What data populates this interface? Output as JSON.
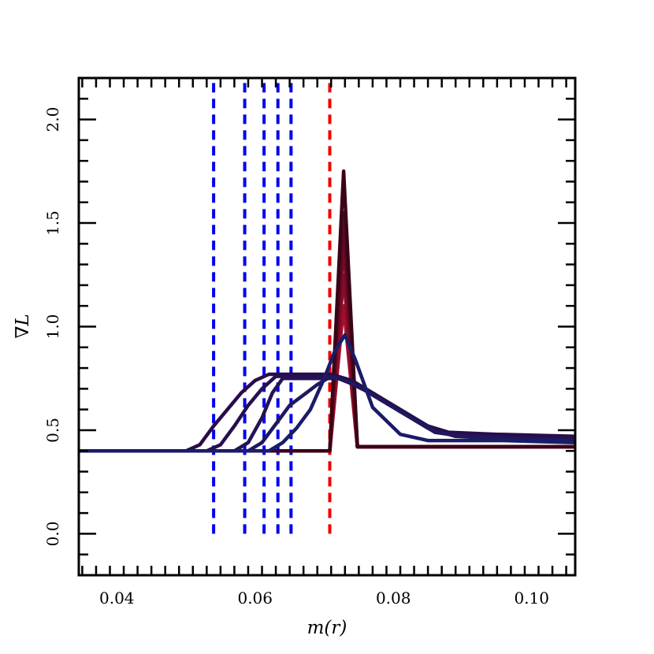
{
  "chart_data": {
    "type": "line",
    "title": "",
    "xlabel": "m(r)",
    "ylabel": "∇L",
    "xlim": [
      0.0345,
      0.1063
    ],
    "ylim": [
      -0.2,
      2.2
    ],
    "x_ticks": [
      0.04,
      0.06,
      0.08,
      0.1
    ],
    "x_tick_labels": [
      "0.04",
      "0.06",
      "0.08",
      "0.10"
    ],
    "y_ticks": [
      0.0,
      0.5,
      1.0,
      1.5,
      2.0
    ],
    "y_tick_labels": [
      "0.0",
      "0.5",
      "1.0",
      "1.5",
      "2.0"
    ],
    "grid": false,
    "legend": "none",
    "vertical_lines": [
      {
        "x": 0.054,
        "color": "#0000ee",
        "style": "dashed",
        "y_range": [
          0.0,
          2.2
        ]
      },
      {
        "x": 0.0585,
        "color": "#0000ee",
        "style": "dashed",
        "y_range": [
          0.0,
          2.2
        ]
      },
      {
        "x": 0.0613,
        "color": "#0000ee",
        "style": "dashed",
        "y_range": [
          0.0,
          2.2
        ]
      },
      {
        "x": 0.0633,
        "color": "#0000ee",
        "style": "dashed",
        "y_range": [
          0.0,
          2.2
        ]
      },
      {
        "x": 0.0652,
        "color": "#0000ee",
        "style": "dashed",
        "y_range": [
          0.0,
          2.2
        ]
      },
      {
        "x": 0.0708,
        "color": "#ee0000",
        "style": "dashed",
        "y_range": [
          0.0,
          2.2
        ]
      }
    ],
    "series": [
      {
        "color": "#a0102a",
        "x": [
          0.0345,
          0.0708,
          0.0728,
          0.0748,
          0.1063
        ],
        "y": [
          0.4,
          0.4,
          1.1,
          0.42,
          0.42
        ]
      },
      {
        "color": "#8a0c28",
        "x": [
          0.0345,
          0.0708,
          0.0728,
          0.0748,
          0.1063
        ],
        "y": [
          0.4,
          0.4,
          1.25,
          0.42,
          0.42
        ]
      },
      {
        "color": "#760a24",
        "x": [
          0.0345,
          0.0708,
          0.0728,
          0.0748,
          0.1063
        ],
        "y": [
          0.4,
          0.4,
          1.4,
          0.42,
          0.42
        ]
      },
      {
        "color": "#5a0820",
        "x": [
          0.0345,
          0.0708,
          0.0728,
          0.0748,
          0.1063
        ],
        "y": [
          0.4,
          0.4,
          1.55,
          0.42,
          0.42
        ]
      },
      {
        "color": "#3a0418",
        "x": [
          0.0345,
          0.0708,
          0.0728,
          0.0748,
          0.1063
        ],
        "y": [
          0.4,
          0.4,
          1.75,
          0.42,
          0.42
        ]
      },
      {
        "color": "#2a0c4a",
        "x": [
          0.0345,
          0.05,
          0.052,
          0.054,
          0.056,
          0.058,
          0.06,
          0.062,
          0.065,
          0.068,
          0.071,
          0.074,
          0.077,
          0.081,
          0.085,
          0.088,
          0.095,
          0.1063
        ],
        "y": [
          0.4,
          0.4,
          0.43,
          0.52,
          0.6,
          0.68,
          0.74,
          0.77,
          0.77,
          0.77,
          0.77,
          0.74,
          0.68,
          0.6,
          0.52,
          0.49,
          0.48,
          0.47
        ]
      },
      {
        "color": "#26104f",
        "x": [
          0.0345,
          0.053,
          0.055,
          0.057,
          0.059,
          0.061,
          0.063,
          0.065,
          0.068,
          0.071,
          0.074,
          0.077,
          0.081,
          0.085,
          0.088,
          0.095,
          0.1063
        ],
        "y": [
          0.4,
          0.4,
          0.43,
          0.52,
          0.62,
          0.7,
          0.76,
          0.76,
          0.76,
          0.76,
          0.73,
          0.67,
          0.59,
          0.51,
          0.48,
          0.47,
          0.46
        ]
      },
      {
        "color": "#221456",
        "x": [
          0.0345,
          0.057,
          0.059,
          0.061,
          0.0625,
          0.064,
          0.066,
          0.069,
          0.072,
          0.075,
          0.078,
          0.082,
          0.086,
          0.089,
          0.095,
          0.1063
        ],
        "y": [
          0.4,
          0.4,
          0.44,
          0.56,
          0.68,
          0.75,
          0.75,
          0.75,
          0.75,
          0.71,
          0.65,
          0.57,
          0.5,
          0.47,
          0.46,
          0.45
        ]
      },
      {
        "color": "#1e185e",
        "x": [
          0.0345,
          0.059,
          0.061,
          0.063,
          0.065,
          0.067,
          0.069,
          0.071,
          0.073,
          0.076,
          0.079,
          0.083,
          0.086,
          0.09,
          0.096,
          0.1063
        ],
        "y": [
          0.4,
          0.4,
          0.44,
          0.53,
          0.62,
          0.67,
          0.72,
          0.76,
          0.74,
          0.69,
          0.63,
          0.55,
          0.49,
          0.47,
          0.46,
          0.45
        ]
      },
      {
        "color": "#1a1c68",
        "x": [
          0.0345,
          0.062,
          0.064,
          0.066,
          0.068,
          0.07,
          0.0715,
          0.073,
          0.0745,
          0.077,
          0.081,
          0.085,
          0.09,
          0.096,
          0.1063
        ],
        "y": [
          0.4,
          0.4,
          0.44,
          0.51,
          0.6,
          0.75,
          0.88,
          0.96,
          0.84,
          0.61,
          0.48,
          0.45,
          0.45,
          0.45,
          0.44
        ]
      }
    ]
  }
}
